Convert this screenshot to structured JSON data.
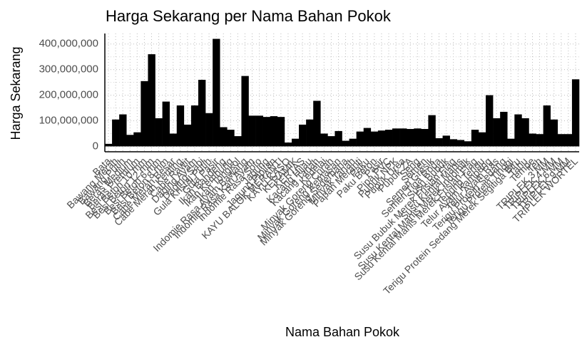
{
  "chart_data": {
    "type": "bar",
    "title": "Harga Sekarang per Nama Bahan Pokok",
    "x_label": "Nama Bahan Pokok",
    "y_label": "Harga Sekarang",
    "categories": [
      "Bata",
      "Bawang Merah",
      "Bawang Putih",
      "Beras Medium",
      "Beras Premium",
      "Besi Beton 10 mm",
      "Besi Beton 12 mm",
      "Besi Beton 6 mm",
      "Besi Beton 8 mm",
      "Cabe Merah Besar",
      "Cabe Merah Keriting",
      "Cabe Rawit",
      "Daging Ayam",
      "Daging Sapi",
      "Gula Kristal Putih",
      "Gula Pasir",
      "Ikan Bandeng",
      "Ikan Kembung",
      "Ikan Tongkol",
      "Indomie Rasa Ayam Bawang",
      "Indomie Rasa Kari Ayam",
      "Indomie Rasa Soto",
      "Jagung",
      "Jagung Pipilan",
      "KAYU BALOK MERANTI",
      "KAYU KASO",
      "KERAMIK",
      "KERTAS",
      "Kacang Hijau",
      "Kacang Tanah",
      "Kedelai",
      "Minyak Goreng Curah",
      "Minyak Goreng Kemasan",
      "Minyak Goreng Sederhana",
      "Minyak Tanah",
      "Papan Meranti",
      "Paku",
      "Paku Beton",
      "Pasir",
      "Pipa PVC",
      "Pupuk NPK",
      "Pupuk Urea",
      "Pupuk ZA",
      "Seng",
      "Semen",
      "Semen Gresik",
      "Semen Tiga Roda",
      "Susu Bubuk",
      "Susu Bubuk Merek Frisian Flag",
      "Susu Kental Manis",
      "Susu Kental Manis Merek Indomilk",
      "Susu Kental Manis Merek Frisian Flag",
      "Tepung Terigu",
      "Telur Ayam Kampung",
      "Telur Ayam Ras",
      "Terigu Protein Sedang",
      "Terigu Protein Tinggi",
      "Terigu Protein Sedang Merek Segitiga Biru",
      "Tahu",
      "Tempe",
      "Teh",
      "TRIPLEK 3 MM",
      "TRIPLEK 4 MM",
      "TRIPLEK 6 MM",
      "TRIPLEK 9 MM",
      "TRIPLEK WORTEL"
    ],
    "values": [
      10000000,
      105000000,
      125000000,
      45000000,
      55000000,
      255000000,
      360000000,
      110000000,
      175000000,
      50000000,
      160000000,
      85000000,
      160000000,
      260000000,
      130000000,
      420000000,
      75000000,
      65000000,
      40000000,
      275000000,
      120000000,
      120000000,
      115000000,
      118000000,
      115000000,
      15000000,
      30000000,
      85000000,
      105000000,
      178000000,
      50000000,
      40000000,
      60000000,
      22000000,
      30000000,
      58000000,
      72000000,
      58000000,
      62000000,
      65000000,
      70000000,
      70000000,
      68000000,
      70000000,
      68000000,
      122000000,
      32000000,
      42000000,
      28000000,
      25000000,
      20000000,
      65000000,
      55000000,
      200000000,
      110000000,
      135000000,
      30000000,
      125000000,
      110000000,
      50000000,
      48000000,
      160000000,
      105000000,
      48000000,
      48000000,
      262000000
    ],
    "color": "#000000",
    "ylim": [
      -21000000,
      441000000
    ],
    "yticks": [
      0,
      {
        "value": 100000000,
        "label": "100,000,000"
      },
      {
        "value": 200000000,
        "label": "200,000,000"
      },
      {
        "value": 300000000,
        "label": "300,000,000"
      },
      {
        "value": 400000000,
        "label": "400,000,000"
      }
    ],
    "grid": true
  }
}
